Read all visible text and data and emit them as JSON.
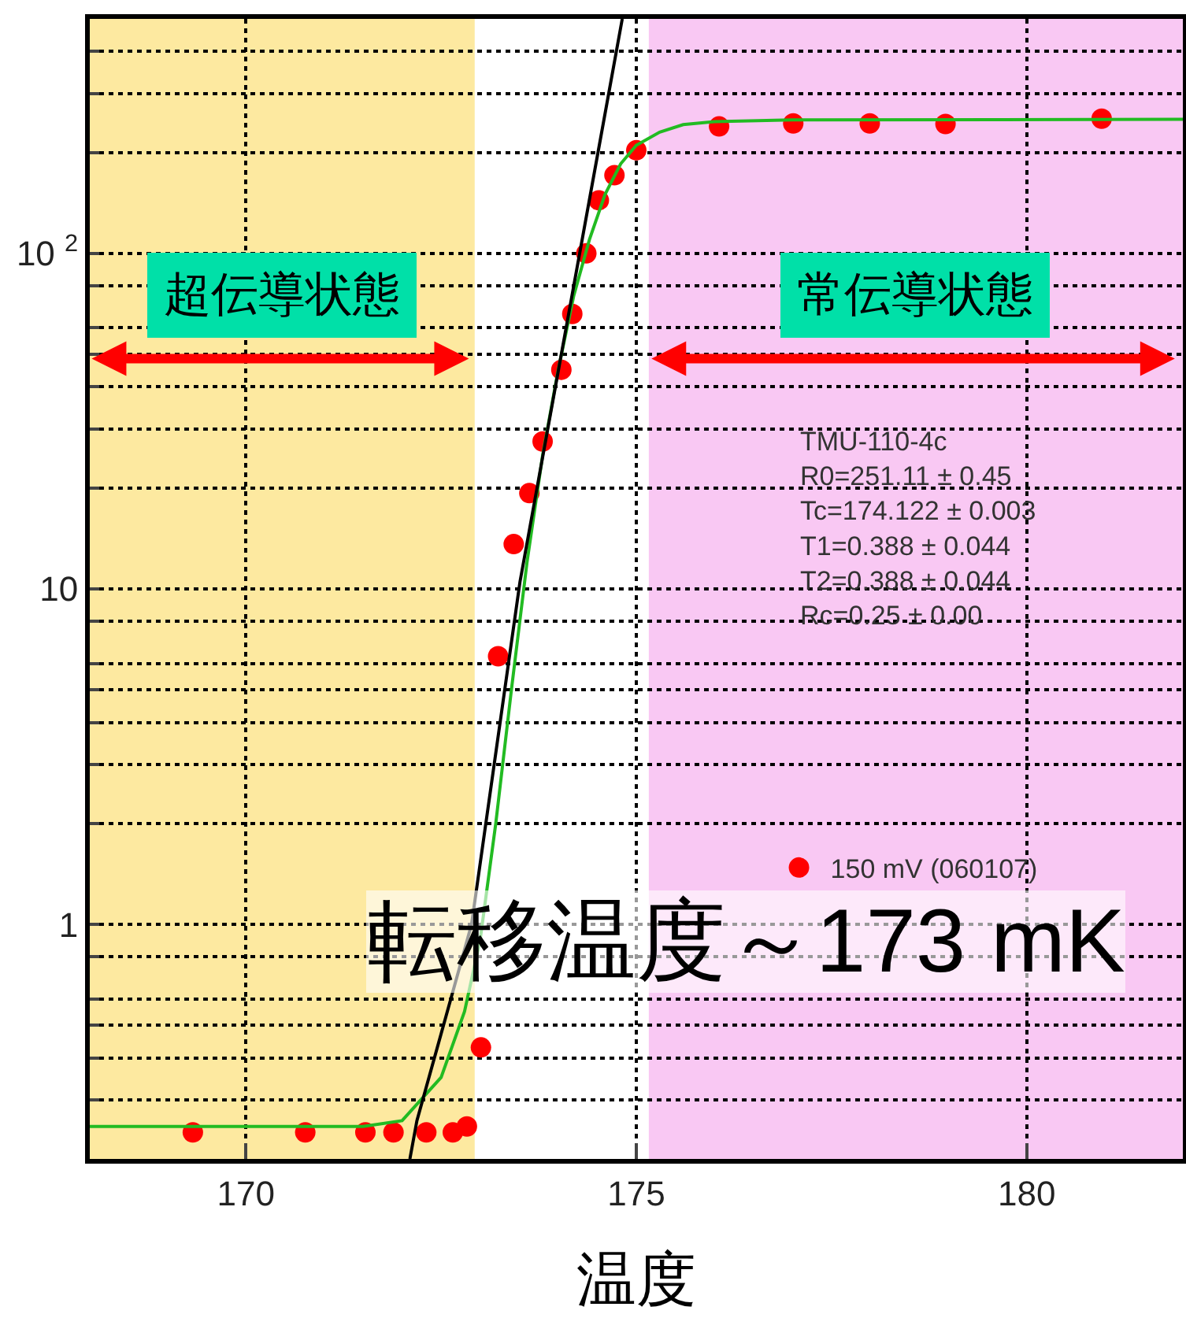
{
  "chart_data": {
    "type": "scatter",
    "xlabel": "温度",
    "xlim": [
      168,
      182
    ],
    "xticks": [
      170,
      175,
      180
    ],
    "ylim": [
      0.2,
      500
    ],
    "log": "y",
    "yticks": [
      {
        "value": 0.2,
        "label": null
      },
      {
        "value": 0.3,
        "label": null
      },
      {
        "value": 0.4,
        "label": null
      },
      {
        "value": 0.5,
        "label": null
      },
      {
        "value": 0.6,
        "label": null
      },
      {
        "value": 0.8,
        "label": null
      },
      1,
      {
        "value": 2,
        "label": null
      },
      {
        "value": 3,
        "label": null
      },
      {
        "value": 4,
        "label": null
      },
      {
        "value": 5,
        "label": null
      },
      {
        "value": 6,
        "label": null
      },
      {
        "value": 8,
        "label": null
      },
      10,
      {
        "value": 20,
        "label": null
      },
      {
        "value": 30,
        "label": null
      },
      {
        "value": 40,
        "label": null
      },
      {
        "value": 50,
        "label": null
      },
      {
        "value": 60,
        "label": null
      },
      {
        "value": 80,
        "label": null
      },
      {
        "value": 100,
        "label": "10 $^{2}$"
      },
      {
        "value": 200,
        "label": null
      },
      {
        "value": 300,
        "label": null
      },
      {
        "value": 400,
        "label": null
      }
    ],
    "grid": true,
    "legend": "right",
    "marker": "circle",
    "series": [
      {
        "name": "150 mV (060107)",
        "color": "#ff0000",
        "x": [
          169.32,
          170.76,
          171.53,
          171.89,
          172.31,
          172.65,
          172.83,
          173.01,
          173.23,
          173.43,
          173.63,
          173.8,
          174.04,
          174.18,
          174.36,
          174.52,
          174.72,
          175.0,
          176.06,
          177.01,
          177.99,
          178.96,
          180.96
        ],
        "values": [
          0.24,
          0.24,
          0.24,
          0.24,
          0.24,
          0.24,
          0.25,
          0.43,
          6.3,
          13.6,
          19.3,
          27.5,
          45,
          66,
          100,
          144,
          171,
          203,
          239,
          244,
          244,
          243,
          252
        ]
      },
      {
        "type": "line",
        "color": "#22bb22",
        "marker": "none",
        "x": [
          168,
          171.5,
          172,
          172.5,
          172.8,
          173,
          173.2,
          173.4,
          173.6,
          173.8,
          174,
          174.2,
          174.4,
          174.6,
          174.8,
          175,
          175.3,
          175.6,
          176,
          177,
          182
        ],
        "values": [
          0.25,
          0.25,
          0.26,
          0.35,
          0.55,
          0.9,
          2,
          5,
          12,
          25,
          45,
          75,
          110,
          150,
          185,
          210,
          230,
          242,
          247,
          250,
          251
        ]
      },
      {
        "type": "line",
        "color": "#000000",
        "marker": "none",
        "x": [
          172.1,
          172.19,
          172.89,
          173.51,
          174.82
        ],
        "values": [
          0.2,
          0.26,
          1,
          10.5,
          500
        ]
      }
    ],
    "bands": [
      {
        "axis": "x",
        "from": 168,
        "to": 172.93,
        "label": "超伝導状態",
        "color": "#fde9a0"
      },
      {
        "axis": "x",
        "from": 175.16,
        "to": 182,
        "label": "常伝導状態",
        "color": "#f9c8f3"
      }
    ],
    "annotations": [
      "TMU-110-4c\nR0=251.11 ± 0.45\nTc=174.122 ± 0.003\nT1=0.388 ± 0.044\nT2=0.388 ± 0.044\nRc=0.25 ± 0.00",
      "転移温度～173 mK"
    ]
  }
}
